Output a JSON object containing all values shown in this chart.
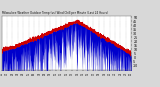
{
  "title": "Milwaukee Weather Outdoor Temp (vs) Wind Chill per Minute (Last 24 Hours)",
  "bg_color": "#d8d8d8",
  "plot_bg_color": "#ffffff",
  "line_color_red": "#cc0000",
  "fill_color_blue": "#0000cc",
  "fill_color_red": "#cc0000",
  "grid_color": "#999999",
  "y_label_color": "#000000",
  "ylim": [
    -15,
    52
  ],
  "yticks": [
    -10,
    -5,
    0,
    5,
    10,
    15,
    20,
    25,
    30,
    35,
    40,
    45,
    50
  ],
  "num_points": 1440,
  "figsize": [
    1.6,
    0.87
  ],
  "dpi": 100
}
